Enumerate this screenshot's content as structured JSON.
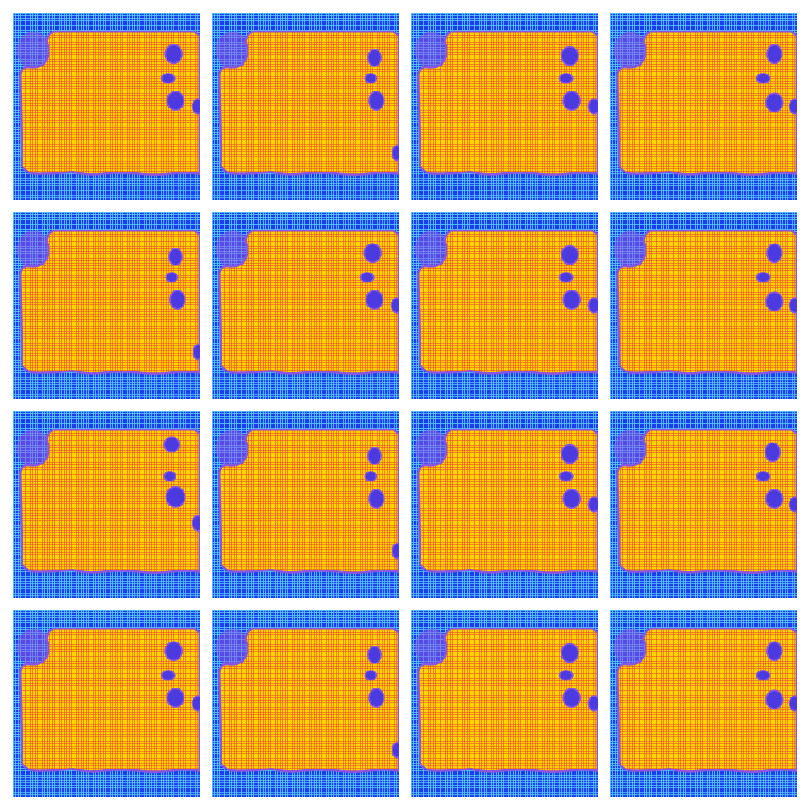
{
  "grid": {
    "rows": 4,
    "cols": 4,
    "tile_count": 16
  },
  "colors": {
    "background": "#ffffff",
    "outer_field": "#1c3cf0",
    "outer_mesh": "#58c8ff",
    "blob_fill": "#ffd500",
    "blob_mesh": "#e8502a",
    "blob_edge": "#8a55e0",
    "holes": "#4a3ae0"
  },
  "tiles": [
    {
      "variant": 0
    },
    {
      "variant": 1
    },
    {
      "variant": 2
    },
    {
      "variant": 3
    },
    {
      "variant": 1
    },
    {
      "variant": 0
    },
    {
      "variant": 2
    },
    {
      "variant": 3
    },
    {
      "variant": 4
    },
    {
      "variant": 1
    },
    {
      "variant": 2
    },
    {
      "variant": 5
    },
    {
      "variant": 0
    },
    {
      "variant": 1
    },
    {
      "variant": 2
    },
    {
      "variant": 3
    }
  ]
}
